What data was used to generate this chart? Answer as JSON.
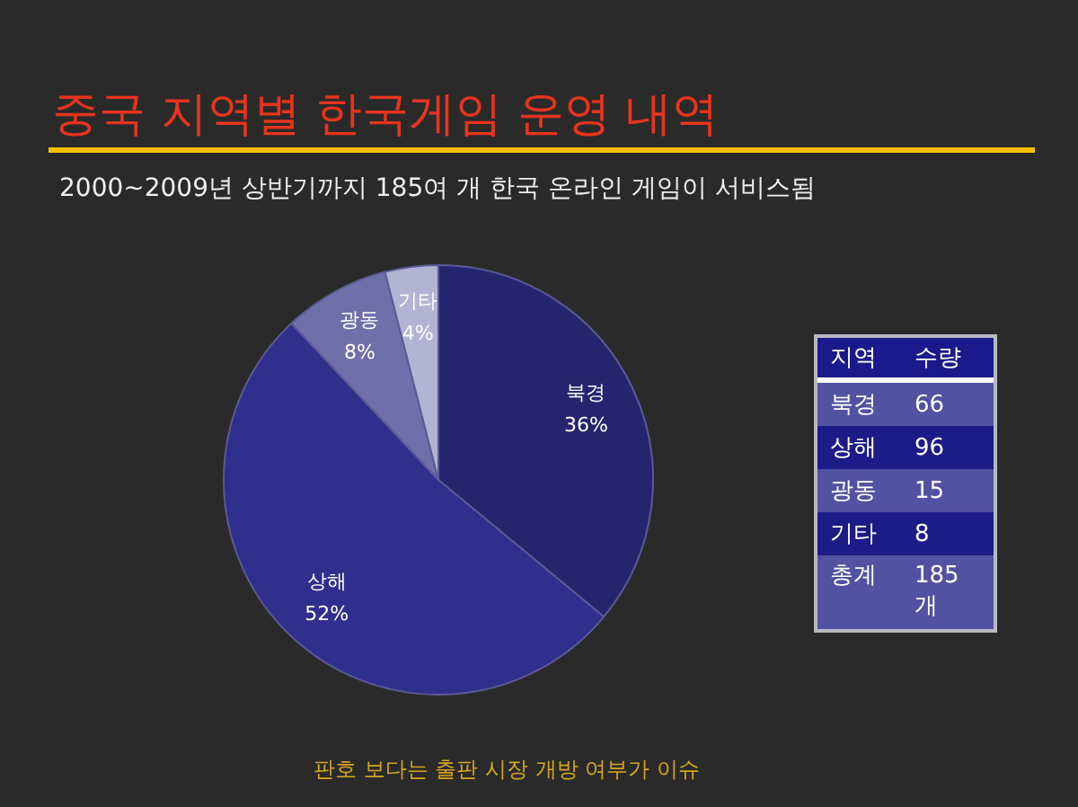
{
  "chart_data": [
    {
      "type": "pie",
      "title": "중국 지역별 한국게임 운영 내역",
      "subtitle": "2000~2009년 상반기까지 185여 개 한국 온라인 게임이 서비스됨",
      "annotations": [
        "판호 보다는 출판 시장 개방 여부가 이슈"
      ],
      "categories": [
        "북경",
        "상해",
        "광동",
        "기타"
      ],
      "values": [
        36,
        52,
        8,
        4
      ],
      "value_labels": [
        "36%",
        "52%",
        "8%",
        "4%"
      ],
      "colors": [
        "#25256f",
        "#2f2f8d",
        "#6f6fa9",
        "#b3b3d3"
      ]
    },
    {
      "type": "other",
      "xlabel": "지역",
      "ylabel": "수량",
      "categories": [
        "북경",
        "상해",
        "광동",
        "기타",
        "총계"
      ],
      "value_labels": [
        "66",
        "96",
        "15",
        "8",
        "185 개"
      ]
    }
  ]
}
